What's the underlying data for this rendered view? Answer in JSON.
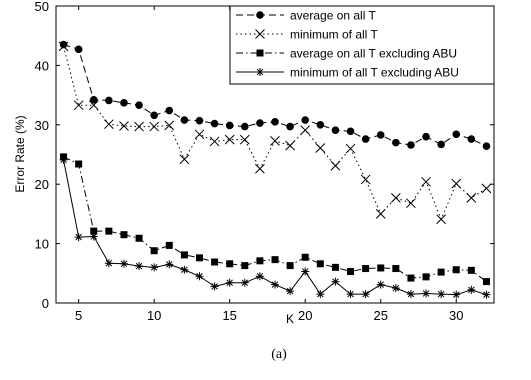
{
  "chart_data": {
    "type": "line",
    "xlabel": "K",
    "ylabel": "Error Rate (%)",
    "caption": "(a)",
    "xlim": [
      3.5,
      32.5
    ],
    "ylim": [
      0,
      50
    ],
    "xticks": [
      5,
      10,
      15,
      20,
      25,
      30
    ],
    "yticks": [
      0,
      10,
      20,
      30,
      40,
      50
    ],
    "legend_position": "top-right",
    "x": [
      4,
      5,
      6,
      7,
      8,
      9,
      10,
      11,
      12,
      13,
      14,
      15,
      16,
      17,
      18,
      19,
      20,
      21,
      22,
      23,
      24,
      25,
      26,
      27,
      28,
      29,
      30,
      31,
      32
    ],
    "series": [
      {
        "name": "average on all T",
        "marker": "circle",
        "line_style": "dashed",
        "values": [
          43.5,
          42.7,
          34.2,
          34.1,
          33.7,
          33.3,
          31.6,
          32.4,
          30.8,
          30.7,
          30.2,
          29.9,
          29.7,
          30.3,
          30.5,
          29.7,
          30.8,
          30.0,
          29.1,
          28.9,
          27.6,
          28.3,
          27.0,
          26.6,
          28.0,
          26.7,
          28.4,
          27.6,
          26.4
        ]
      },
      {
        "name": "minimum of all T",
        "marker": "x",
        "line_style": "dotted",
        "values": [
          43.2,
          33.3,
          33.3,
          30.1,
          29.8,
          29.7,
          29.7,
          29.9,
          24.2,
          28.4,
          27.2,
          27.5,
          27.5,
          22.6,
          27.3,
          26.5,
          29.1,
          26.1,
          23.1,
          26.0,
          20.8,
          15.0,
          17.7,
          16.8,
          20.4,
          14.1,
          20.1,
          17.7,
          19.3
        ]
      },
      {
        "name": "average on all T excluding ABU",
        "marker": "square",
        "line_style": "dashdot",
        "values": [
          24.6,
          23.4,
          12.1,
          12.1,
          11.5,
          10.9,
          8.8,
          9.7,
          8.1,
          7.6,
          6.9,
          6.6,
          6.3,
          7.1,
          7.3,
          6.3,
          7.7,
          6.6,
          6.0,
          5.3,
          5.8,
          5.9,
          5.8,
          4.2,
          4.4,
          5.2,
          5.6,
          5.5,
          3.6
        ]
      },
      {
        "name": "minimum of all T excluding ABU",
        "marker": "star",
        "line_style": "solid",
        "values": [
          24.1,
          11.1,
          11.2,
          6.7,
          6.6,
          6.2,
          6.0,
          6.5,
          5.6,
          4.5,
          2.8,
          3.4,
          3.4,
          4.5,
          3.1,
          2.0,
          5.3,
          1.5,
          3.6,
          1.5,
          1.5,
          3.1,
          2.5,
          1.5,
          1.6,
          1.5,
          1.4,
          2.2,
          1.4
        ]
      }
    ]
  }
}
